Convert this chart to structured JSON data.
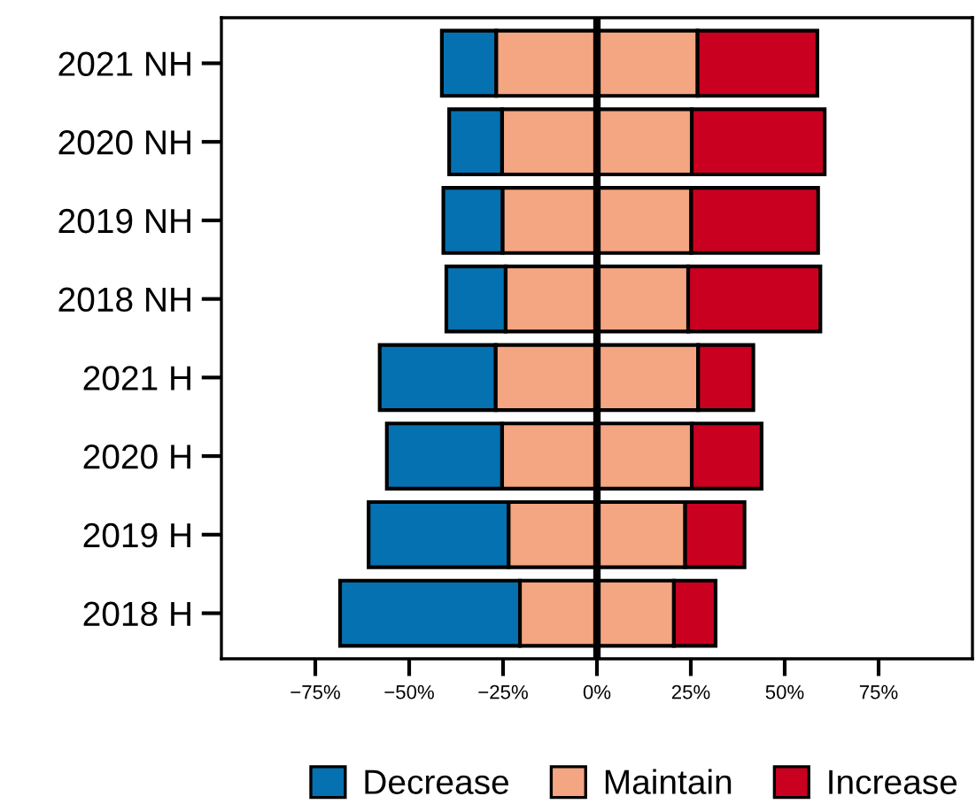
{
  "chart_data": {
    "type": "bar",
    "orientation": "horizontal",
    "categories": [
      "2021 NH",
      "2020 NH",
      "2019 NH",
      "2018 NH",
      "2021 H",
      "2020 H",
      "2019 H",
      "2018 H"
    ],
    "series": [
      {
        "name": "Decrease",
        "color": "#0571b0",
        "values": [
          14.5,
          14.1,
          15.8,
          15.8,
          30.9,
          30.7,
          37.3,
          47.9
        ],
        "base": [
          -41.3,
          -39.35,
          -40.9,
          -40.1,
          -57.85,
          -55.95,
          -60.8,
          -68.4
        ]
      },
      {
        "name": "Maintain",
        "color": "#f4a582",
        "values": [
          53.6,
          50.5,
          50.2,
          48.6,
          53.9,
          50.5,
          47.0,
          41.0
        ],
        "base": [
          -26.8,
          -25.25,
          -25.1,
          -24.3,
          -26.95,
          -25.25,
          -23.5,
          -20.5
        ]
      },
      {
        "name": "Increase",
        "color": "#ca0020",
        "values": [
          31.9,
          35.4,
          33.8,
          35.2,
          14.7,
          18.6,
          15.8,
          11.1
        ],
        "base": [
          26.8,
          25.25,
          25.1,
          24.3,
          26.95,
          25.25,
          23.5,
          20.5
        ]
      }
    ],
    "xlim": [
      -100,
      100
    ],
    "xticks": [
      {
        "value": -75,
        "label": "−75%"
      },
      {
        "value": -50,
        "label": "−50%"
      },
      {
        "value": -25,
        "label": "−25%"
      },
      {
        "value": 0,
        "label": "0%"
      },
      {
        "value": 25,
        "label": "25%"
      },
      {
        "value": 50,
        "label": "50%"
      },
      {
        "value": 75,
        "label": "75%"
      }
    ],
    "ref_lines": [
      {
        "axis": "x",
        "value": 0,
        "color": "#000000"
      }
    ],
    "legend": "bottom",
    "grid": false
  }
}
